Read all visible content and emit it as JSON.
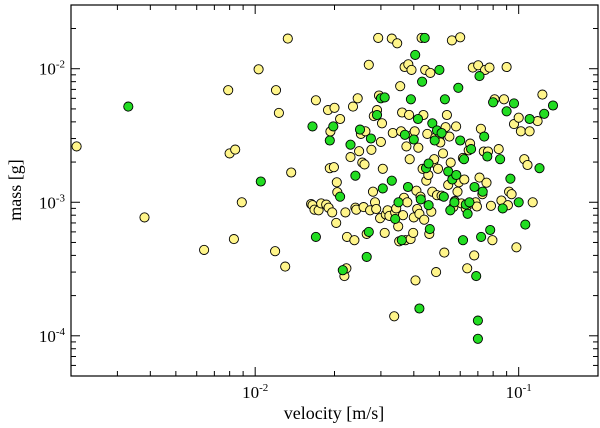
{
  "chart_data": {
    "type": "scatter",
    "title": "",
    "xlabel": "velocity [m/s]",
    "ylabel": "mass [g]",
    "xscale": "log",
    "yscale": "log",
    "xlim": [
      0.002,
      0.2
    ],
    "ylim": [
      5e-05,
      0.03
    ],
    "grid": false,
    "legend": "none",
    "colors": {
      "yellow": "#fff58a",
      "green": "#22dd22",
      "edge": "#000000",
      "axis": "#000000"
    },
    "x_ticks": [
      {
        "value": 0.01,
        "base": "10",
        "exp": "-2"
      },
      {
        "value": 0.1,
        "base": "10",
        "exp": "-1"
      }
    ],
    "y_ticks": [
      {
        "value": 0.01,
        "base": "10",
        "exp": "-2"
      },
      {
        "value": 0.001,
        "base": "10",
        "exp": "-3"
      },
      {
        "value": 0.0001,
        "base": "10",
        "exp": "-4"
      }
    ],
    "series": [
      {
        "name": "yellow",
        "color": "#fff58a",
        "points": [
          [
            0.0021,
            0.00262
          ],
          [
            0.0038,
            0.00077
          ],
          [
            0.0064,
            0.00044
          ],
          [
            0.0079,
            0.0069
          ],
          [
            0.008,
            0.00232
          ],
          [
            0.0083,
            0.00053
          ],
          [
            0.0084,
            0.00248
          ],
          [
            0.0089,
            0.001
          ],
          [
            0.0103,
            0.0099
          ],
          [
            0.0119,
            0.00043
          ],
          [
            0.012,
            0.0069
          ],
          [
            0.0123,
            0.00467
          ],
          [
            0.013,
            0.00033
          ],
          [
            0.0133,
            0.0168
          ],
          [
            0.0137,
            0.00167
          ],
          [
            0.0163,
            0.00097
          ],
          [
            0.0165,
            0.00095
          ],
          [
            0.0168,
            0.00088
          ],
          [
            0.017,
            0.0058
          ],
          [
            0.0174,
            0.00087
          ],
          [
            0.0178,
            0.00098
          ],
          [
            0.0186,
            0.00096
          ],
          [
            0.0189,
            0.0049
          ],
          [
            0.019,
            0.00091
          ],
          [
            0.0192,
            0.0018
          ],
          [
            0.0193,
            0.00339
          ],
          [
            0.0196,
            0.00084
          ],
          [
            0.0199,
            0.00183
          ],
          [
            0.02,
            0.0051
          ],
          [
            0.0203,
            0.0007
          ],
          [
            0.0204,
            0.00141
          ],
          [
            0.0205,
            0.00119
          ],
          [
            0.021,
            0.0042
          ],
          [
            0.0218,
            0.00028
          ],
          [
            0.022,
            0.00084
          ],
          [
            0.0222,
            0.00032
          ],
          [
            0.0223,
            0.00055
          ],
          [
            0.023,
            0.00218
          ],
          [
            0.0235,
            0.0052
          ],
          [
            0.0238,
            0.00052
          ],
          [
            0.024,
            0.00091
          ],
          [
            0.0242,
            0.00088
          ],
          [
            0.0245,
            0.006
          ],
          [
            0.0248,
            0.00241
          ],
          [
            0.0252,
            0.00325
          ],
          [
            0.0255,
            0.00198
          ],
          [
            0.0258,
            0.00092
          ],
          [
            0.026,
            0.00192
          ],
          [
            0.0262,
            0.0034
          ],
          [
            0.0265,
            0.00058
          ],
          [
            0.027,
            0.0107
          ],
          [
            0.0273,
            0.00087
          ],
          [
            0.0276,
            0.00247
          ],
          [
            0.028,
            0.0012
          ],
          [
            0.0282,
            0.00442
          ],
          [
            0.0285,
            0.001
          ],
          [
            0.0288,
            0.00089
          ],
          [
            0.029,
            0.0049
          ],
          [
            0.0293,
            0.017
          ],
          [
            0.0295,
            0.0063
          ],
          [
            0.0298,
            0.00076
          ],
          [
            0.03,
            0.00283
          ],
          [
            0.0303,
            0.0039
          ],
          [
            0.0305,
            0.00178
          ],
          [
            0.031,
            0.00059
          ],
          [
            0.0313,
            0.00081
          ],
          [
            0.0318,
            0.00087
          ],
          [
            0.0323,
            0.00079
          ],
          [
            0.033,
            0.0168
          ],
          [
            0.0333,
            0.0033
          ],
          [
            0.0337,
            0.00014
          ],
          [
            0.034,
            0.00084
          ],
          [
            0.0343,
            0.0009
          ],
          [
            0.0346,
            0.0155
          ],
          [
            0.0349,
            0.00066
          ],
          [
            0.0352,
            0.00051
          ],
          [
            0.0355,
            0.0074
          ],
          [
            0.0358,
            0.0034
          ],
          [
            0.0361,
            0.0047
          ],
          [
            0.0364,
            0.0008
          ],
          [
            0.0367,
            0.00108
          ],
          [
            0.0369,
            0.0103
          ],
          [
            0.0372,
            0.00052
          ],
          [
            0.0375,
            0.00262
          ],
          [
            0.0378,
            0.001
          ],
          [
            0.0381,
            0.0108
          ],
          [
            0.0384,
            0.00451
          ],
          [
            0.0386,
            0.0021
          ],
          [
            0.0389,
            0.00053
          ],
          [
            0.0392,
            0.0098
          ],
          [
            0.0395,
            0.0032
          ],
          [
            0.0398,
            0.00059
          ],
          [
            0.04,
            0.00077
          ],
          [
            0.0403,
            0.0034
          ],
          [
            0.0406,
            0.00026
          ],
          [
            0.0409,
            0.00122
          ],
          [
            0.0412,
            0.00089
          ],
          [
            0.0416,
            0.00256
          ],
          [
            0.042,
            0.00082
          ],
          [
            0.0424,
            0.0011
          ],
          [
            0.0428,
            0.017
          ],
          [
            0.0432,
            0.00178
          ],
          [
            0.0435,
            0.0045
          ],
          [
            0.0438,
            0.00074
          ],
          [
            0.0442,
            0.0098
          ],
          [
            0.0446,
            0.00145
          ],
          [
            0.045,
            0.00325
          ],
          [
            0.0454,
            0.0016
          ],
          [
            0.0458,
            0.00058
          ],
          [
            0.0462,
            0.0093
          ],
          [
            0.0466,
            0.00085
          ],
          [
            0.047,
            0.0012
          ],
          [
            0.0474,
            0.00198
          ],
          [
            0.0478,
            0.0021
          ],
          [
            0.0482,
            0.00305
          ],
          [
            0.0486,
            0.0003
          ],
          [
            0.049,
            0.00113
          ],
          [
            0.0494,
            0.00178
          ],
          [
            0.0499,
            0.003
          ],
          [
            0.0504,
            0.0028
          ],
          [
            0.051,
            0.00112
          ],
          [
            0.0516,
            0.00232
          ],
          [
            0.0522,
            0.00042
          ],
          [
            0.0528,
            0.00365
          ],
          [
            0.0534,
            0.0045
          ],
          [
            0.054,
            0.00135
          ],
          [
            0.0546,
            0.0031
          ],
          [
            0.0552,
            0.00198
          ],
          [
            0.0558,
            0.0163
          ],
          [
            0.0565,
            0.00092
          ],
          [
            0.0572,
            0.00102
          ],
          [
            0.0579,
            0.0037
          ],
          [
            0.0586,
            0.0012
          ],
          [
            0.0593,
            0.00141
          ],
          [
            0.06,
            0.0172
          ],
          [
            0.0607,
            0.00098
          ],
          [
            0.0614,
            0.00215
          ],
          [
            0.0622,
            0.00148
          ],
          [
            0.063,
            0.0009
          ],
          [
            0.0638,
            0.00032
          ],
          [
            0.0646,
            0.00245
          ],
          [
            0.0654,
            0.00275
          ],
          [
            0.0662,
            0.00098
          ],
          [
            0.067,
            0.0102
          ],
          [
            0.0678,
            0.0004
          ],
          [
            0.0686,
            0.001
          ],
          [
            0.0694,
            0.00093
          ],
          [
            0.0702,
            0.0106
          ],
          [
            0.071,
            0.00153
          ],
          [
            0.0719,
            0.00355
          ],
          [
            0.0728,
            0.00115
          ],
          [
            0.0737,
            0.0024
          ],
          [
            0.0746,
            0.0098
          ],
          [
            0.0755,
            0.0014
          ],
          [
            0.0765,
            0.0024
          ],
          [
            0.0775,
            0.0102
          ],
          [
            0.0785,
            0.00094
          ],
          [
            0.0795,
            0.00052
          ],
          [
            0.081,
            0.0059
          ],
          [
            0.084,
            0.0025
          ],
          [
            0.086,
            0.00103
          ],
          [
            0.088,
            0.0059
          ],
          [
            0.09,
            0.0103
          ],
          [
            0.091,
            0.00095
          ],
          [
            0.092,
            0.0012
          ],
          [
            0.094,
            0.00115
          ],
          [
            0.096,
            0.00385
          ],
          [
            0.098,
            0.00046
          ],
          [
            0.1,
            0.0043
          ],
          [
            0.102,
            0.0034
          ],
          [
            0.105,
            0.0021
          ],
          [
            0.108,
            0.0019
          ],
          [
            0.11,
            0.0034
          ],
          [
            0.113,
            0.001
          ],
          [
            0.118,
            0.00405
          ],
          [
            0.123,
            0.0064
          ]
        ]
      },
      {
        "name": "green",
        "color": "#22dd22",
        "points": [
          [
            0.0033,
            0.0052
          ],
          [
            0.0105,
            0.00143
          ],
          [
            0.0165,
            0.0037
          ],
          [
            0.017,
            0.00055
          ],
          [
            0.0192,
            0.0029
          ],
          [
            0.0198,
            0.0037
          ],
          [
            0.021,
            0.0011
          ],
          [
            0.0215,
            0.00031
          ],
          [
            0.023,
            0.0027
          ],
          [
            0.024,
            0.00158
          ],
          [
            0.025,
            0.0035
          ],
          [
            0.0265,
            0.00039
          ],
          [
            0.027,
            0.0006
          ],
          [
            0.0275,
            0.003
          ],
          [
            0.029,
            0.0045
          ],
          [
            0.03,
            0.006
          ],
          [
            0.0305,
            0.00127
          ],
          [
            0.031,
            0.0061
          ],
          [
            0.033,
            0.00145
          ],
          [
            0.034,
            0.00075
          ],
          [
            0.035,
            0.001
          ],
          [
            0.036,
            0.00052
          ],
          [
            0.037,
            0.0032
          ],
          [
            0.038,
            0.0013
          ],
          [
            0.039,
            0.0059
          ],
          [
            0.04,
            0.00295
          ],
          [
            0.0405,
            0.0127
          ],
          [
            0.0415,
            0.0042
          ],
          [
            0.042,
            0.00016
          ],
          [
            0.0425,
            0.00105
          ],
          [
            0.043,
            0.008
          ],
          [
            0.044,
            0.017
          ],
          [
            0.0445,
            0.0018
          ],
          [
            0.0455,
            0.00095
          ],
          [
            0.046,
            0.00063
          ],
          [
            0.047,
            0.0039
          ],
          [
            0.048,
            0.0029
          ],
          [
            0.049,
            0.00345
          ],
          [
            0.05,
            0.0098
          ],
          [
            0.051,
            0.0033
          ],
          [
            0.052,
            0.0011
          ],
          [
            0.054,
            0.0017
          ],
          [
            0.055,
            0.00087
          ],
          [
            0.056,
            0.00148
          ],
          [
            0.057,
            0.001
          ],
          [
            0.058,
            0.0016
          ],
          [
            0.059,
            0.0072
          ],
          [
            0.06,
            0.0029
          ],
          [
            0.062,
            0.0021
          ],
          [
            0.063,
            0.00096
          ],
          [
            0.064,
            0.00082
          ],
          [
            0.065,
            0.001
          ],
          [
            0.066,
            0.0025
          ],
          [
            0.068,
            0.0013
          ],
          [
            0.069,
            0.00028
          ],
          [
            0.07,
            0.00013
          ],
          [
            0.071,
            0.0088
          ],
          [
            0.072,
            0.00055
          ],
          [
            0.073,
            0.0012
          ],
          [
            0.074,
            0.0031
          ],
          [
            0.076,
            0.0022
          ],
          [
            0.078,
            0.00062
          ],
          [
            0.08,
            0.0056
          ],
          [
            0.085,
            0.0021
          ],
          [
            0.087,
            0.0009
          ],
          [
            0.09,
            0.0048
          ],
          [
            0.093,
            0.0015
          ],
          [
            0.096,
            0.0055
          ],
          [
            0.1,
            0.001
          ],
          [
            0.106,
            0.00068
          ],
          [
            0.11,
            0.0042
          ],
          [
            0.12,
            0.0018
          ],
          [
            0.125,
            0.0046
          ],
          [
            0.135,
            0.0053
          ],
          [
            0.07,
            9.5e-05
          ],
          [
            0.0525,
            0.0059
          ],
          [
            0.0455,
            0.00195
          ],
          [
            0.0615,
            0.00052
          ]
        ]
      }
    ]
  }
}
